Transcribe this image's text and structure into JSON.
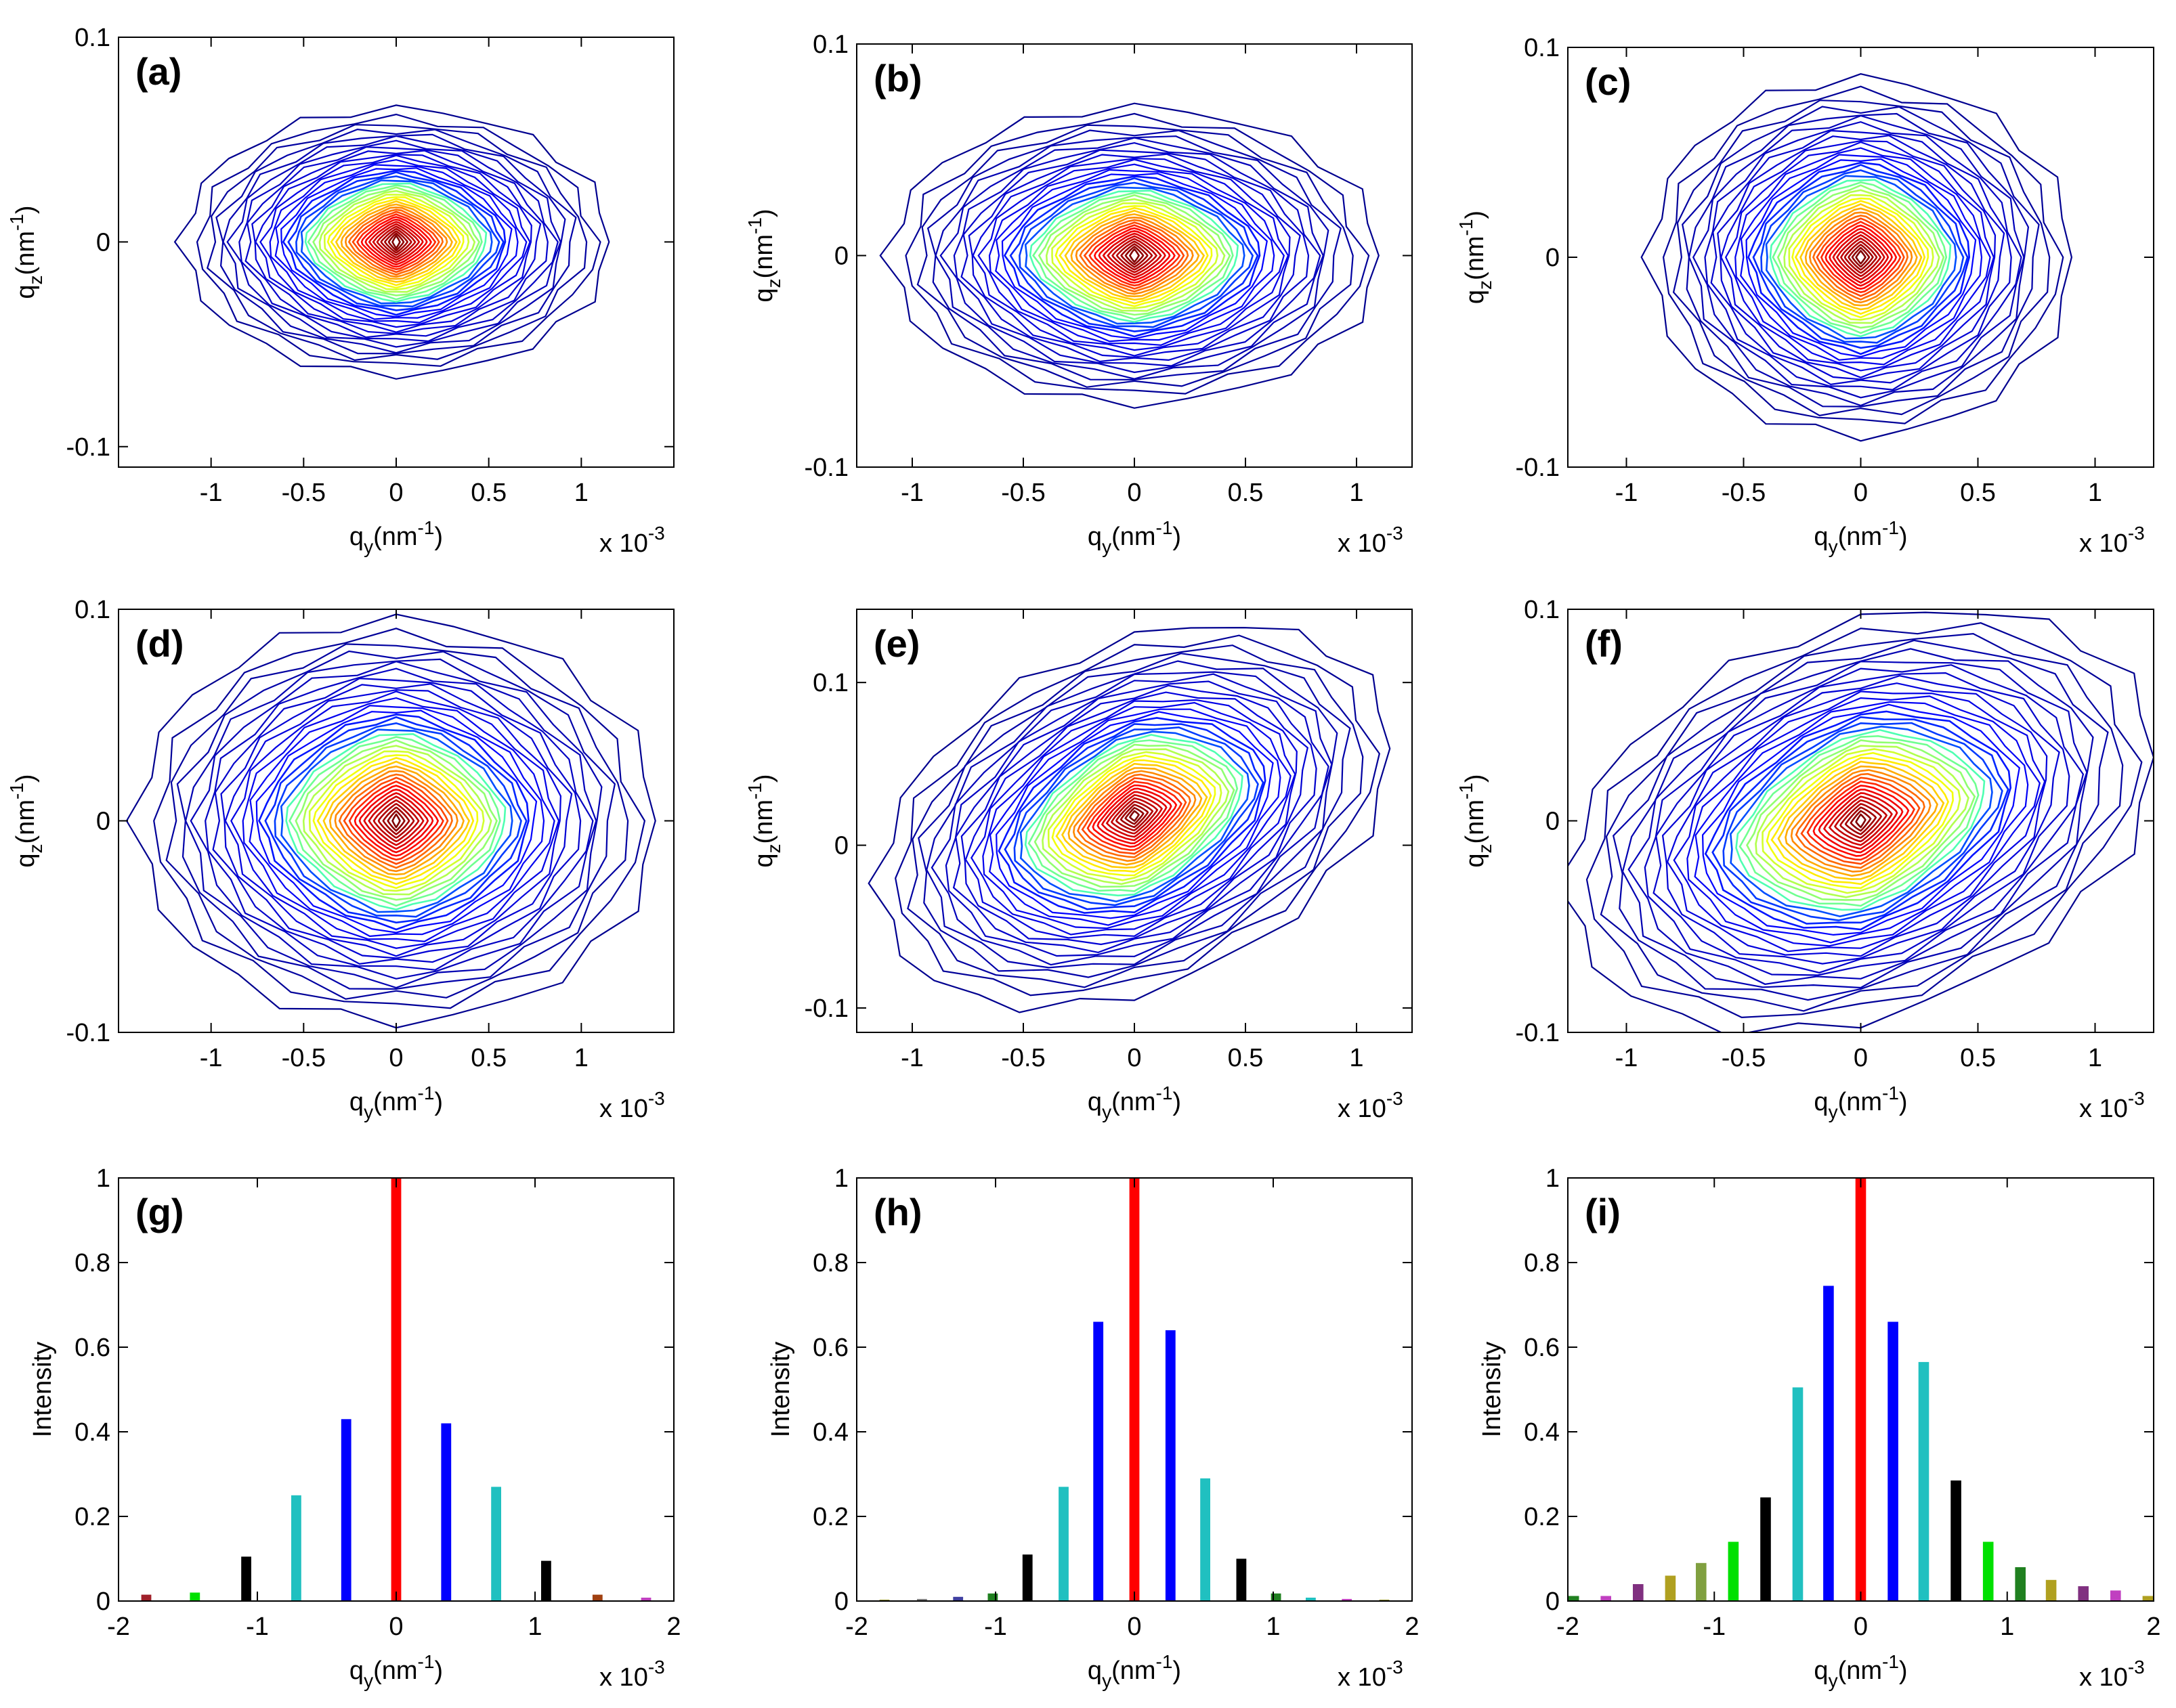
{
  "figure": {
    "panels": [
      {
        "id": "a",
        "label": "(a)",
        "kind": "contour",
        "xlabel": "q",
        "xlabel_sub": "y",
        "xlabel_unit": "(nm",
        "xlabel_sup": "-1",
        "xlabel_close": ")",
        "ylabel": "q",
        "ylabel_sub": "z",
        "ylabel_unit": "(nm",
        "ylabel_sup": "-1",
        "ylabel_close": ")",
        "multiplier_text": "x 10",
        "multiplier_exp": "-3",
        "xticks": [
          "-1",
          "-0.5",
          "0",
          "0.5",
          "1"
        ],
        "yticks": [
          "-0.1",
          "0",
          "0.1"
        ]
      },
      {
        "id": "b",
        "label": "(b)",
        "kind": "contour",
        "xlabel": "q",
        "xlabel_sub": "y",
        "xlabel_unit": "(nm",
        "xlabel_sup": "-1",
        "xlabel_close": ")",
        "ylabel": "q",
        "ylabel_sub": "z",
        "ylabel_unit": "(nm",
        "ylabel_sup": "-1",
        "ylabel_close": ")",
        "multiplier_text": "x 10",
        "multiplier_exp": "-3",
        "xticks": [
          "-1",
          "-0.5",
          "0",
          "0.5",
          "1"
        ],
        "yticks": [
          "-0.1",
          "0",
          "0.1"
        ]
      },
      {
        "id": "c",
        "label": "(c)",
        "kind": "contour",
        "xlabel": "q",
        "xlabel_sub": "y",
        "xlabel_unit": "(nm",
        "xlabel_sup": "-1",
        "xlabel_close": ")",
        "ylabel": "q",
        "ylabel_sub": "z",
        "ylabel_unit": "(nm",
        "ylabel_sup": "-1",
        "ylabel_close": ")",
        "multiplier_text": "x 10",
        "multiplier_exp": "-3",
        "xticks": [
          "-1",
          "-0.5",
          "0",
          "0.5",
          "1"
        ],
        "yticks": [
          "-0.1",
          "0",
          "0.1"
        ]
      },
      {
        "id": "d",
        "label": "(d)",
        "kind": "contour",
        "xlabel": "q",
        "xlabel_sub": "y",
        "xlabel_unit": "(nm",
        "xlabel_sup": "-1",
        "xlabel_close": ")",
        "ylabel": "q",
        "ylabel_sub": "z",
        "ylabel_unit": "(nm",
        "ylabel_sup": "-1",
        "ylabel_close": ")",
        "multiplier_text": "x 10",
        "multiplier_exp": "-3",
        "xticks": [
          "-1",
          "-0.5",
          "0",
          "0.5",
          "1"
        ],
        "yticks": [
          "-0.1",
          "0",
          "0.1"
        ]
      },
      {
        "id": "e",
        "label": "(e)",
        "kind": "contour",
        "xlabel": "q",
        "xlabel_sub": "y",
        "xlabel_unit": "(nm",
        "xlabel_sup": "-1",
        "xlabel_close": ")",
        "ylabel": "q",
        "ylabel_sub": "z",
        "ylabel_unit": "(nm",
        "ylabel_sup": "-1",
        "ylabel_close": ")",
        "multiplier_text": "x 10",
        "multiplier_exp": "-3",
        "xticks": [
          "-1",
          "-0.5",
          "0",
          "0.5",
          "1"
        ],
        "yticks": [
          "-0.1",
          "0",
          "0.1"
        ]
      },
      {
        "id": "f",
        "label": "(f)",
        "kind": "contour",
        "xlabel": "q",
        "xlabel_sub": "y",
        "xlabel_unit": "(nm",
        "xlabel_sup": "-1",
        "xlabel_close": ")",
        "ylabel": "q",
        "ylabel_sub": "z",
        "ylabel_unit": "(nm",
        "ylabel_sup": "-1",
        "ylabel_close": ")",
        "multiplier_text": "x 10",
        "multiplier_exp": "-3",
        "xticks": [
          "-1",
          "-0.5",
          "0",
          "0.5",
          "1"
        ],
        "yticks": [
          "-0.1",
          "0",
          "0.1"
        ]
      },
      {
        "id": "g",
        "label": "(g)",
        "kind": "bar",
        "xlabel": "q",
        "xlabel_sub": "y",
        "xlabel_unit": "(nm",
        "xlabel_sup": "-1",
        "xlabel_close": ")",
        "ylabel": "Intensity",
        "multiplier_text": "x 10",
        "multiplier_exp": "-3",
        "xticks": [
          "-2",
          "-1",
          "0",
          "1",
          "2"
        ],
        "yticks": [
          "0",
          "0.2",
          "0.4",
          "0.6",
          "0.8",
          "1"
        ]
      },
      {
        "id": "h",
        "label": "(h)",
        "kind": "bar",
        "xlabel": "q",
        "xlabel_sub": "y",
        "xlabel_unit": "(nm",
        "xlabel_sup": "-1",
        "xlabel_close": ")",
        "ylabel": "Intensity",
        "multiplier_text": "x 10",
        "multiplier_exp": "-3",
        "xticks": [
          "-2",
          "-1",
          "0",
          "1",
          "2"
        ],
        "yticks": [
          "0",
          "0.2",
          "0.4",
          "0.6",
          "0.8",
          "1"
        ]
      },
      {
        "id": "i",
        "label": "(i)",
        "kind": "bar",
        "xlabel": "q",
        "xlabel_sub": "y",
        "xlabel_unit": "(nm",
        "xlabel_sup": "-1",
        "xlabel_close": ")",
        "ylabel": "Intensity",
        "multiplier_text": "x 10",
        "multiplier_exp": "-3",
        "xticks": [
          "-2",
          "-1",
          "0",
          "1",
          "2"
        ],
        "yticks": [
          "0",
          "0.2",
          "0.4",
          "0.6",
          "0.8",
          "1"
        ]
      }
    ]
  },
  "chart_data": [
    {
      "panel": "a",
      "type": "heatmap",
      "x_multiplier": 0.001,
      "xlim": [
        -1.5,
        1.5
      ],
      "ylim": [
        -0.11,
        0.1
      ],
      "peak": {
        "x": 0,
        "y": 0
      },
      "spread_x": 0.55,
      "spread_y": 0.032,
      "tilt": 0,
      "outer_rx": 1.15,
      "outer_ry": 0.065,
      "levels": 40,
      "colormap": [
        "#00008f",
        "#0000ff",
        "#00ffff",
        "#ffff00",
        "#ff0000",
        "#800000"
      ]
    },
    {
      "panel": "b",
      "type": "heatmap",
      "x_multiplier": 0.001,
      "xlim": [
        -1.25,
        1.25
      ],
      "ylim": [
        -0.1,
        0.1
      ],
      "peak": {
        "x": 0,
        "y": 0
      },
      "spread_x": 0.35,
      "spread_y": 0.028,
      "tilt": 0,
      "outer_rx": 1.1,
      "outer_ry": 0.07,
      "levels": 40,
      "colormap": [
        "#00008f",
        "#0000ff",
        "#00ffff",
        "#ffff00",
        "#ff0000",
        "#800000"
      ]
    },
    {
      "panel": "c",
      "type": "heatmap",
      "x_multiplier": 0.001,
      "xlim": [
        -1.25,
        1.25
      ],
      "ylim": [
        -0.1,
        0.1
      ],
      "peak": {
        "x": 0,
        "y": 0
      },
      "spread_x": 0.28,
      "spread_y": 0.04,
      "tilt": 0,
      "outer_rx": 0.9,
      "outer_ry": 0.085,
      "levels": 40,
      "colormap": [
        "#00008f",
        "#0000ff",
        "#00ffff",
        "#ffff00",
        "#ff0000",
        "#800000"
      ]
    },
    {
      "panel": "d",
      "type": "heatmap",
      "x_multiplier": 0.001,
      "xlim": [
        -1.5,
        1.5
      ],
      "ylim": [
        -0.1,
        0.1
      ],
      "peak": {
        "x": 0,
        "y": 0
      },
      "spread_x": 0.5,
      "spread_y": 0.03,
      "tilt": 0,
      "outer_rx": 1.4,
      "outer_ry": 0.095,
      "levels": 40,
      "colormap": [
        "#00008f",
        "#0000ff",
        "#00ffff",
        "#ffff00",
        "#ff0000",
        "#800000"
      ]
    },
    {
      "panel": "e",
      "type": "heatmap",
      "x_multiplier": 0.001,
      "xlim": [
        -1.25,
        1.25
      ],
      "ylim": [
        -0.115,
        0.145
      ],
      "peak": {
        "x": 0,
        "y": 0.018
      },
      "spread_x": 0.38,
      "spread_y": 0.035,
      "tilt": 0.06,
      "outer_rx": 1.15,
      "outer_ry": 0.11,
      "levels": 40,
      "colormap": [
        "#00008f",
        "#0000ff",
        "#00ffff",
        "#ffff00",
        "#ff0000",
        "#800000"
      ]
    },
    {
      "panel": "f",
      "type": "heatmap",
      "x_multiplier": 0.001,
      "xlim": [
        -1.25,
        1.25
      ],
      "ylim": [
        -0.1,
        0.1
      ],
      "peak": {
        "x": 0,
        "y": 0
      },
      "spread_x": 0.45,
      "spread_y": 0.04,
      "tilt": 0.04,
      "outer_rx": 1.25,
      "outer_ry": 0.095,
      "levels": 40,
      "colormap": [
        "#00008f",
        "#0000ff",
        "#00ffff",
        "#ffff00",
        "#ff0000",
        "#800000"
      ]
    },
    {
      "panel": "g",
      "type": "bar",
      "x_multiplier": 0.001,
      "xlim": [
        -2,
        2
      ],
      "ylim": [
        0,
        1
      ],
      "x": [
        -1.8,
        -1.45,
        -1.08,
        -0.72,
        -0.36,
        0,
        0.36,
        0.72,
        1.08,
        1.45,
        1.8
      ],
      "values": [
        0.015,
        0.02,
        0.105,
        0.25,
        0.43,
        1.0,
        0.42,
        0.27,
        0.095,
        0.015,
        0.008
      ],
      "colors": [
        "#a0202a",
        "#00e000",
        "#000000",
        "#20c0c0",
        "#0000ff",
        "#ff0000",
        "#0000ff",
        "#20c0c0",
        "#000000",
        "#a04010",
        "#c040c0"
      ]
    },
    {
      "panel": "h",
      "type": "bar",
      "x_multiplier": 0.001,
      "xlim": [
        -2,
        2
      ],
      "ylim": [
        0,
        1
      ],
      "x": [
        -1.8,
        -1.53,
        -1.27,
        -1.02,
        -0.77,
        -0.51,
        -0.26,
        0,
        0.26,
        0.51,
        0.77,
        1.02,
        1.27,
        1.53,
        1.8
      ],
      "values": [
        0.003,
        0.005,
        0.01,
        0.018,
        0.11,
        0.27,
        0.66,
        1.0,
        0.64,
        0.29,
        0.1,
        0.018,
        0.008,
        0.005,
        0.003
      ],
      "colors": [
        "#808000",
        "#808080",
        "#4040a0",
        "#208020",
        "#000000",
        "#20c0c0",
        "#0000ff",
        "#ff0000",
        "#0000ff",
        "#20c0c0",
        "#000000",
        "#208020",
        "#20c0c0",
        "#c040c0",
        "#808000"
      ]
    },
    {
      "panel": "i",
      "type": "bar",
      "x_multiplier": 0.001,
      "xlim": [
        -2,
        2
      ],
      "ylim": [
        0,
        1
      ],
      "x": [
        -1.96,
        -1.74,
        -1.52,
        -1.3,
        -1.09,
        -0.87,
        -0.65,
        -0.43,
        -0.22,
        0,
        0.22,
        0.43,
        0.65,
        0.87,
        1.09,
        1.3,
        1.52,
        1.74,
        1.96
      ],
      "values": [
        0.012,
        0.012,
        0.04,
        0.06,
        0.09,
        0.14,
        0.245,
        0.505,
        0.745,
        1.0,
        0.66,
        0.565,
        0.285,
        0.14,
        0.08,
        0.05,
        0.035,
        0.025,
        0.012
      ],
      "colors": [
        "#208020",
        "#c040c0",
        "#803080",
        "#b0a020",
        "#80a040",
        "#00e000",
        "#000000",
        "#20c0c0",
        "#0000ff",
        "#ff0000",
        "#0000ff",
        "#20c0c0",
        "#000000",
        "#00e000",
        "#208020",
        "#b0a020",
        "#803080",
        "#c040c0",
        "#b0a020"
      ]
    }
  ]
}
